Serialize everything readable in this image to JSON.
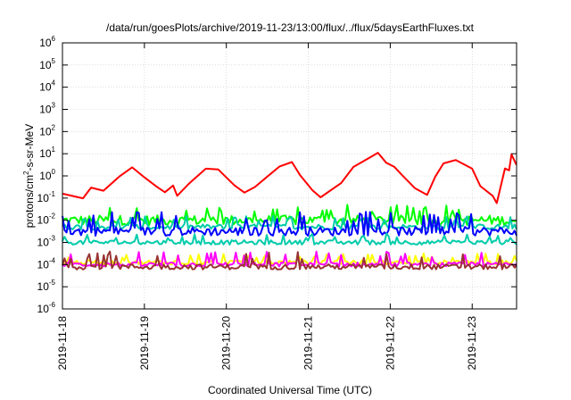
{
  "chart_data": {
    "type": "line",
    "title": "/data/run/goesPlots/archive/2019-11-23/13:00/flux/../flux/5daysEarthFluxes.txt",
    "xlabel": "Coordinated Universal Time (UTC)",
    "ylabel": {
      "prefix": "protons/cm",
      "sup": "2",
      "suffix": "-s-sr-MeV"
    },
    "y_scale": "log",
    "ylim_exponent": [
      -6,
      6
    ],
    "y_tick_base": "10",
    "y_tick_exponents": [
      "-6",
      "-5",
      "-4",
      "-3",
      "-2",
      "-1",
      "0",
      "1",
      "2",
      "3",
      "4",
      "5",
      "6"
    ],
    "xlim": [
      "2019-11-18T00:00",
      "2019-11-23T13:00"
    ],
    "x_tick_labels": [
      "2019-11-18",
      "2019-11-19",
      "2019-11-20",
      "2019-11-21",
      "2019-11-22",
      "2019-11-23"
    ],
    "grid": true,
    "legend": "none",
    "series": [
      {
        "color": "#ff0000",
        "x_days": [
          0.0,
          0.25,
          0.35,
          0.5,
          0.7,
          0.85,
          1.0,
          1.15,
          1.25,
          1.35,
          1.4,
          1.55,
          1.75,
          1.9,
          2.1,
          2.22,
          2.35,
          2.5,
          2.65,
          2.8,
          2.9,
          3.05,
          3.15,
          3.4,
          3.55,
          3.75,
          3.85,
          3.95,
          4.05,
          4.15,
          4.3,
          4.45,
          4.55,
          4.65,
          4.8,
          5.0,
          5.1,
          5.25,
          5.3,
          5.4,
          5.45,
          5.48,
          5.54
        ],
        "log10_values": [
          -0.8,
          -1.0,
          -0.5,
          -0.6,
          0.0,
          0.4,
          0.0,
          -0.5,
          -0.8,
          -0.5,
          -0.9,
          -0.4,
          0.3,
          0.3,
          -0.5,
          -0.8,
          -0.5,
          0.0,
          0.5,
          0.6,
          0.0,
          -0.7,
          -0.9,
          -0.3,
          0.4,
          0.8,
          1.0,
          0.6,
          0.4,
          0.0,
          -0.5,
          -0.8,
          0.0,
          0.5,
          0.7,
          0.3,
          -0.4,
          -0.9,
          -1.2,
          0.4,
          0.2,
          1.0,
          0.5
        ]
      },
      {
        "color": "#00ff00",
        "baseline_log10": -2.0,
        "spike_log10": -1.3,
        "noise_log10": 0.22
      },
      {
        "color": "#00ccaa",
        "baseline_log10": -2.3,
        "spike_log10": -1.8,
        "noise_log10": 0.12
      },
      {
        "color": "#0000ff",
        "baseline_log10": -2.5,
        "spike_log10": -1.6,
        "noise_log10": 0.2
      },
      {
        "color": "#00ccaa",
        "baseline_log10": -3.0,
        "spike_log10": -2.6,
        "noise_log10": 0.1
      },
      {
        "color": "#ffff00",
        "baseline_log10": -3.9,
        "spike_log10": -3.5,
        "noise_log10": 0.1
      },
      {
        "color": "#ff00ff",
        "baseline_log10": -4.0,
        "spike_log10": -3.4,
        "noise_log10": 0.1
      },
      {
        "color": "#993333",
        "baseline_log10": -4.1,
        "spike_log10": -3.4,
        "noise_log10": 0.12
      }
    ]
  }
}
